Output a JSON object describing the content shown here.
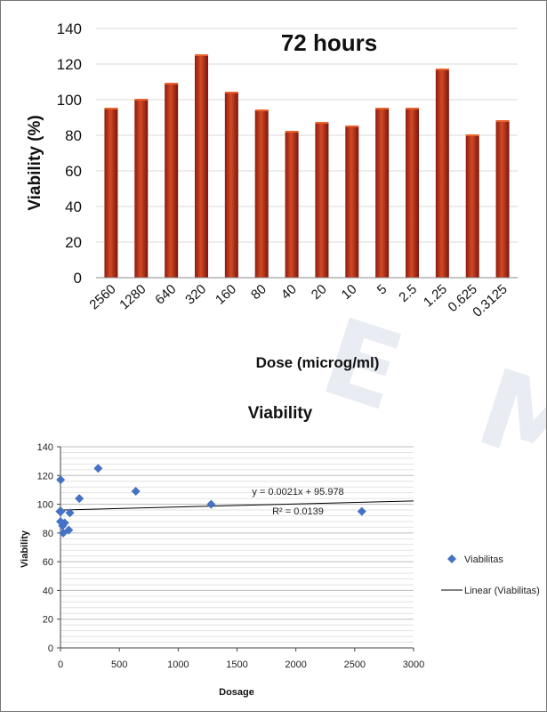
{
  "chart_data": [
    {
      "type": "bar",
      "title": "72 hours",
      "xlabel": "Dose (microg/ml)",
      "ylabel": "Viability (%)",
      "ylim": [
        0,
        140
      ],
      "yticks": [
        0,
        20,
        40,
        60,
        80,
        100,
        120,
        140
      ],
      "categories": [
        "2560",
        "1280",
        "640",
        "320",
        "160",
        "80",
        "40",
        "20",
        "10",
        "5",
        "2.5",
        "1.25",
        "0.625",
        "0.3125"
      ],
      "values": [
        95,
        100,
        109,
        125,
        104,
        94,
        82,
        87,
        85,
        95,
        95,
        117,
        80,
        88
      ],
      "grid": true,
      "bar_color": "#c0392b"
    },
    {
      "type": "scatter",
      "title": "Viability",
      "xlabel": "Dosage",
      "ylabel": "Viability",
      "xlim": [
        0,
        3000
      ],
      "ylim": [
        0,
        140
      ],
      "xticks": [
        0,
        500,
        1000,
        1500,
        2000,
        2500,
        3000
      ],
      "yticks": [
        0,
        20,
        40,
        60,
        80,
        100,
        120,
        140
      ],
      "series": [
        {
          "name": "Viabilitas",
          "x": [
            2560,
            1280,
            640,
            320,
            160,
            80,
            40,
            20,
            10,
            5,
            2.5,
            1.25,
            0.625,
            0.3125
          ],
          "y": [
            95,
            100,
            109,
            125,
            104,
            94,
            82,
            87,
            85,
            95,
            95,
            117,
            80,
            88
          ],
          "color": "#4472c4"
        }
      ],
      "trendline": {
        "name": "Linear (Viabilitas)",
        "slope": 0.0021,
        "intercept": 95.978,
        "equation": "y = 0.0021x + 95.978",
        "r2": "R² = 0.0139",
        "color": "#000000"
      },
      "legend": "right",
      "grid": true
    }
  ]
}
